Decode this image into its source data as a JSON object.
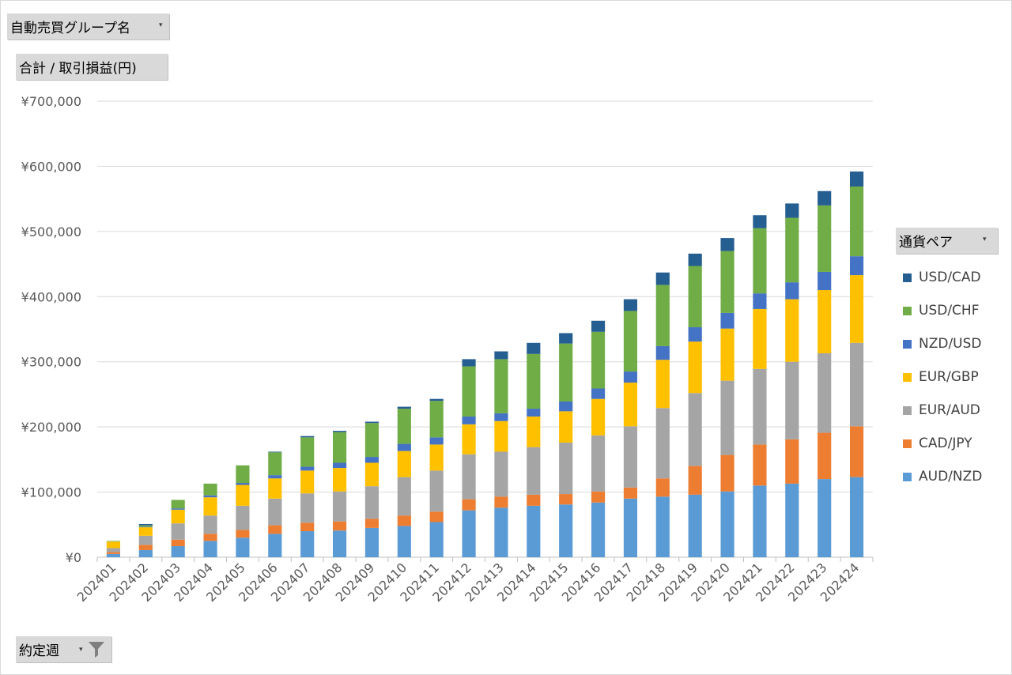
{
  "filters": {
    "group_field": "自動売買グループ名",
    "value_field": "合計 / 取引損益(円)",
    "legend_field": "通貨ペア",
    "axis_field": "約定週",
    "dropdown_glyph": "▾"
  },
  "icons": {
    "filter": "filter-funnel-icon",
    "dropdown": "dropdown-arrow-icon"
  },
  "chart_data": {
    "type": "bar",
    "stacked": true,
    "title": "",
    "xlabel": "",
    "ylabel": "",
    "ylim": [
      0,
      700000
    ],
    "ytick_values": [
      0,
      100000,
      200000,
      300000,
      400000,
      500000,
      600000,
      700000
    ],
    "ytick_labels": [
      "¥0",
      "¥100,000",
      "¥200,000",
      "¥300,000",
      "¥400,000",
      "¥500,000",
      "¥600,000",
      "¥700,000"
    ],
    "grid": true,
    "legend_position": "right",
    "categories": [
      "202401",
      "202402",
      "202403",
      "202404",
      "202405",
      "202406",
      "202407",
      "202408",
      "202409",
      "202410",
      "202411",
      "202412",
      "202413",
      "202414",
      "202415",
      "202416",
      "202417",
      "202418",
      "202419",
      "202420",
      "202421",
      "202422",
      "202423",
      "202424"
    ],
    "series": [
      {
        "name": "AUD/NZD",
        "color": "#5b9bd5",
        "values": [
          5000,
          11000,
          17000,
          25000,
          30000,
          36000,
          40000,
          41000,
          45000,
          48000,
          54000,
          72000,
          76000,
          79000,
          81000,
          84000,
          90000,
          93000,
          96000,
          101000,
          110000,
          113000,
          120000,
          123000
        ]
      },
      {
        "name": "CAD/JPY",
        "color": "#ed7d31",
        "values": [
          3000,
          8000,
          10000,
          11000,
          12000,
          13000,
          13000,
          14000,
          14000,
          16000,
          16000,
          17000,
          17000,
          17000,
          16000,
          17000,
          17000,
          28000,
          44000,
          56000,
          63000,
          68000,
          71000,
          78000
        ]
      },
      {
        "name": "EUR/AUD",
        "color": "#a5a5a5",
        "values": [
          6000,
          14000,
          25000,
          28000,
          37000,
          41000,
          45000,
          46000,
          50000,
          59000,
          63000,
          69000,
          69000,
          73000,
          79000,
          86000,
          94000,
          108000,
          112000,
          114000,
          116000,
          119000,
          122000,
          128000
        ]
      },
      {
        "name": "EUR/GBP",
        "color": "#ffc000",
        "values": [
          10000,
          13000,
          21000,
          28000,
          32000,
          31000,
          35000,
          36000,
          36000,
          40000,
          40000,
          46000,
          47000,
          47000,
          48000,
          56000,
          67000,
          74000,
          79000,
          80000,
          92000,
          96000,
          97000,
          104000
        ]
      },
      {
        "name": "NZD/USD",
        "color": "#4472c4",
        "values": [
          0,
          1000,
          2000,
          3000,
          3000,
          5000,
          6000,
          8000,
          9000,
          11000,
          11000,
          12000,
          12000,
          12000,
          15000,
          16000,
          17000,
          21000,
          22000,
          24000,
          24000,
          26000,
          28000,
          29000
        ]
      },
      {
        "name": "USD/CHF",
        "color": "#70ad47",
        "values": [
          1000,
          2000,
          13000,
          18000,
          27000,
          35000,
          45000,
          47000,
          52000,
          54000,
          56000,
          77000,
          83000,
          84000,
          89000,
          87000,
          93000,
          94000,
          94000,
          95000,
          100000,
          99000,
          102000,
          107000
        ]
      },
      {
        "name": "USD/CAD",
        "color": "#255e91",
        "values": [
          0,
          2000,
          0,
          0,
          0,
          1000,
          2000,
          2000,
          2000,
          3000,
          3000,
          11000,
          12000,
          17000,
          16000,
          17000,
          18000,
          19000,
          19000,
          20000,
          20000,
          22000,
          22000,
          23000
        ]
      }
    ]
  }
}
